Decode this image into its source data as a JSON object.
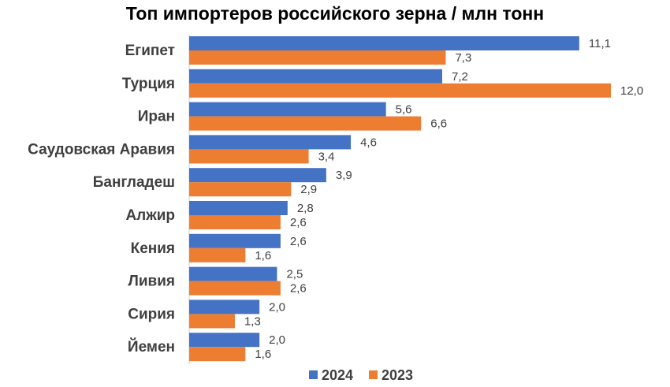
{
  "chart_data": {
    "type": "bar",
    "orientation": "horizontal",
    "title": "Топ импортеров российского зерна / млн тонн",
    "categories": [
      "Египет",
      "Турция",
      "Иран",
      "Саудовская Аравия",
      "Бангладеш",
      "Алжир",
      "Кения",
      "Ливия",
      "Сирия",
      "Йемен"
    ],
    "series": [
      {
        "name": "2024",
        "color": "#4472c4",
        "values": [
          11.1,
          7.2,
          5.6,
          4.6,
          3.9,
          2.8,
          2.6,
          2.5,
          2.0,
          2.0
        ],
        "labels": [
          "11,1",
          "7,2",
          "5,6",
          "4,6",
          "3,9",
          "2,8",
          "2,6",
          "2,5",
          "2,0",
          "2,0"
        ]
      },
      {
        "name": "2023",
        "color": "#ed7d31",
        "values": [
          7.3,
          12.0,
          6.6,
          3.4,
          2.9,
          2.6,
          1.6,
          2.6,
          1.3,
          1.6
        ],
        "labels": [
          "7,3",
          "12,0",
          "6,6",
          "3,4",
          "2,9",
          "2,6",
          "1,6",
          "2,6",
          "1,3",
          "1,6"
        ]
      }
    ],
    "xlim": [
      0,
      12.3
    ],
    "xlabel": "",
    "ylabel": "",
    "grid": false,
    "legend": "bottom"
  }
}
